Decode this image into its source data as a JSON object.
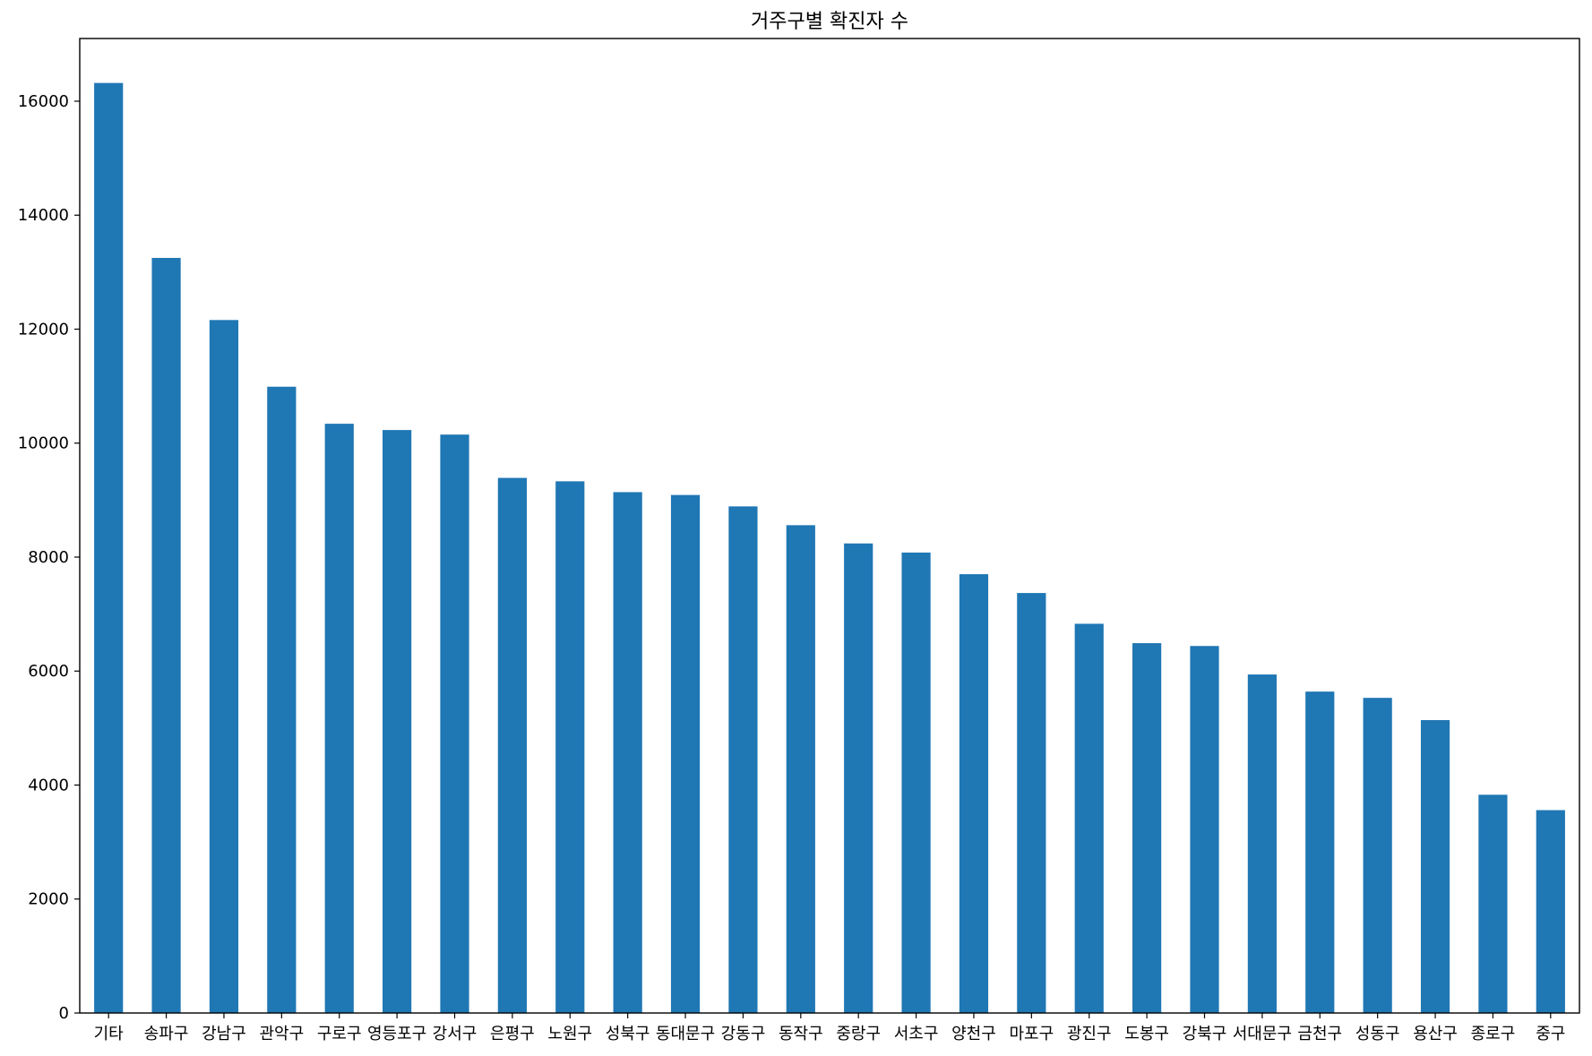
{
  "chart_data": {
    "type": "bar",
    "title": "거주구별 확진자 수",
    "xlabel": "",
    "ylabel": "",
    "ylim": [
      0,
      17100
    ],
    "yticks": [
      0,
      2000,
      4000,
      6000,
      8000,
      10000,
      12000,
      14000,
      16000
    ],
    "categories": [
      "기타",
      "송파구",
      "강남구",
      "관악구",
      "구로구",
      "영등포구",
      "강서구",
      "은평구",
      "노원구",
      "성북구",
      "동대문구",
      "강동구",
      "동작구",
      "중랑구",
      "서초구",
      "양천구",
      "마포구",
      "광진구",
      "도봉구",
      "강북구",
      "서대문구",
      "금천구",
      "성동구",
      "용산구",
      "종로구",
      "중구"
    ],
    "values": [
      16320,
      13250,
      12160,
      10990,
      10340,
      10230,
      10150,
      9390,
      9330,
      9140,
      9090,
      8890,
      8560,
      8240,
      8080,
      7700,
      7370,
      6830,
      6490,
      6440,
      5940,
      5640,
      5530,
      5140,
      3830,
      3560
    ],
    "grid": false,
    "legend": "none",
    "colors": {
      "bar": "#1f77b4",
      "axis": "#000000",
      "background": "#ffffff"
    }
  }
}
